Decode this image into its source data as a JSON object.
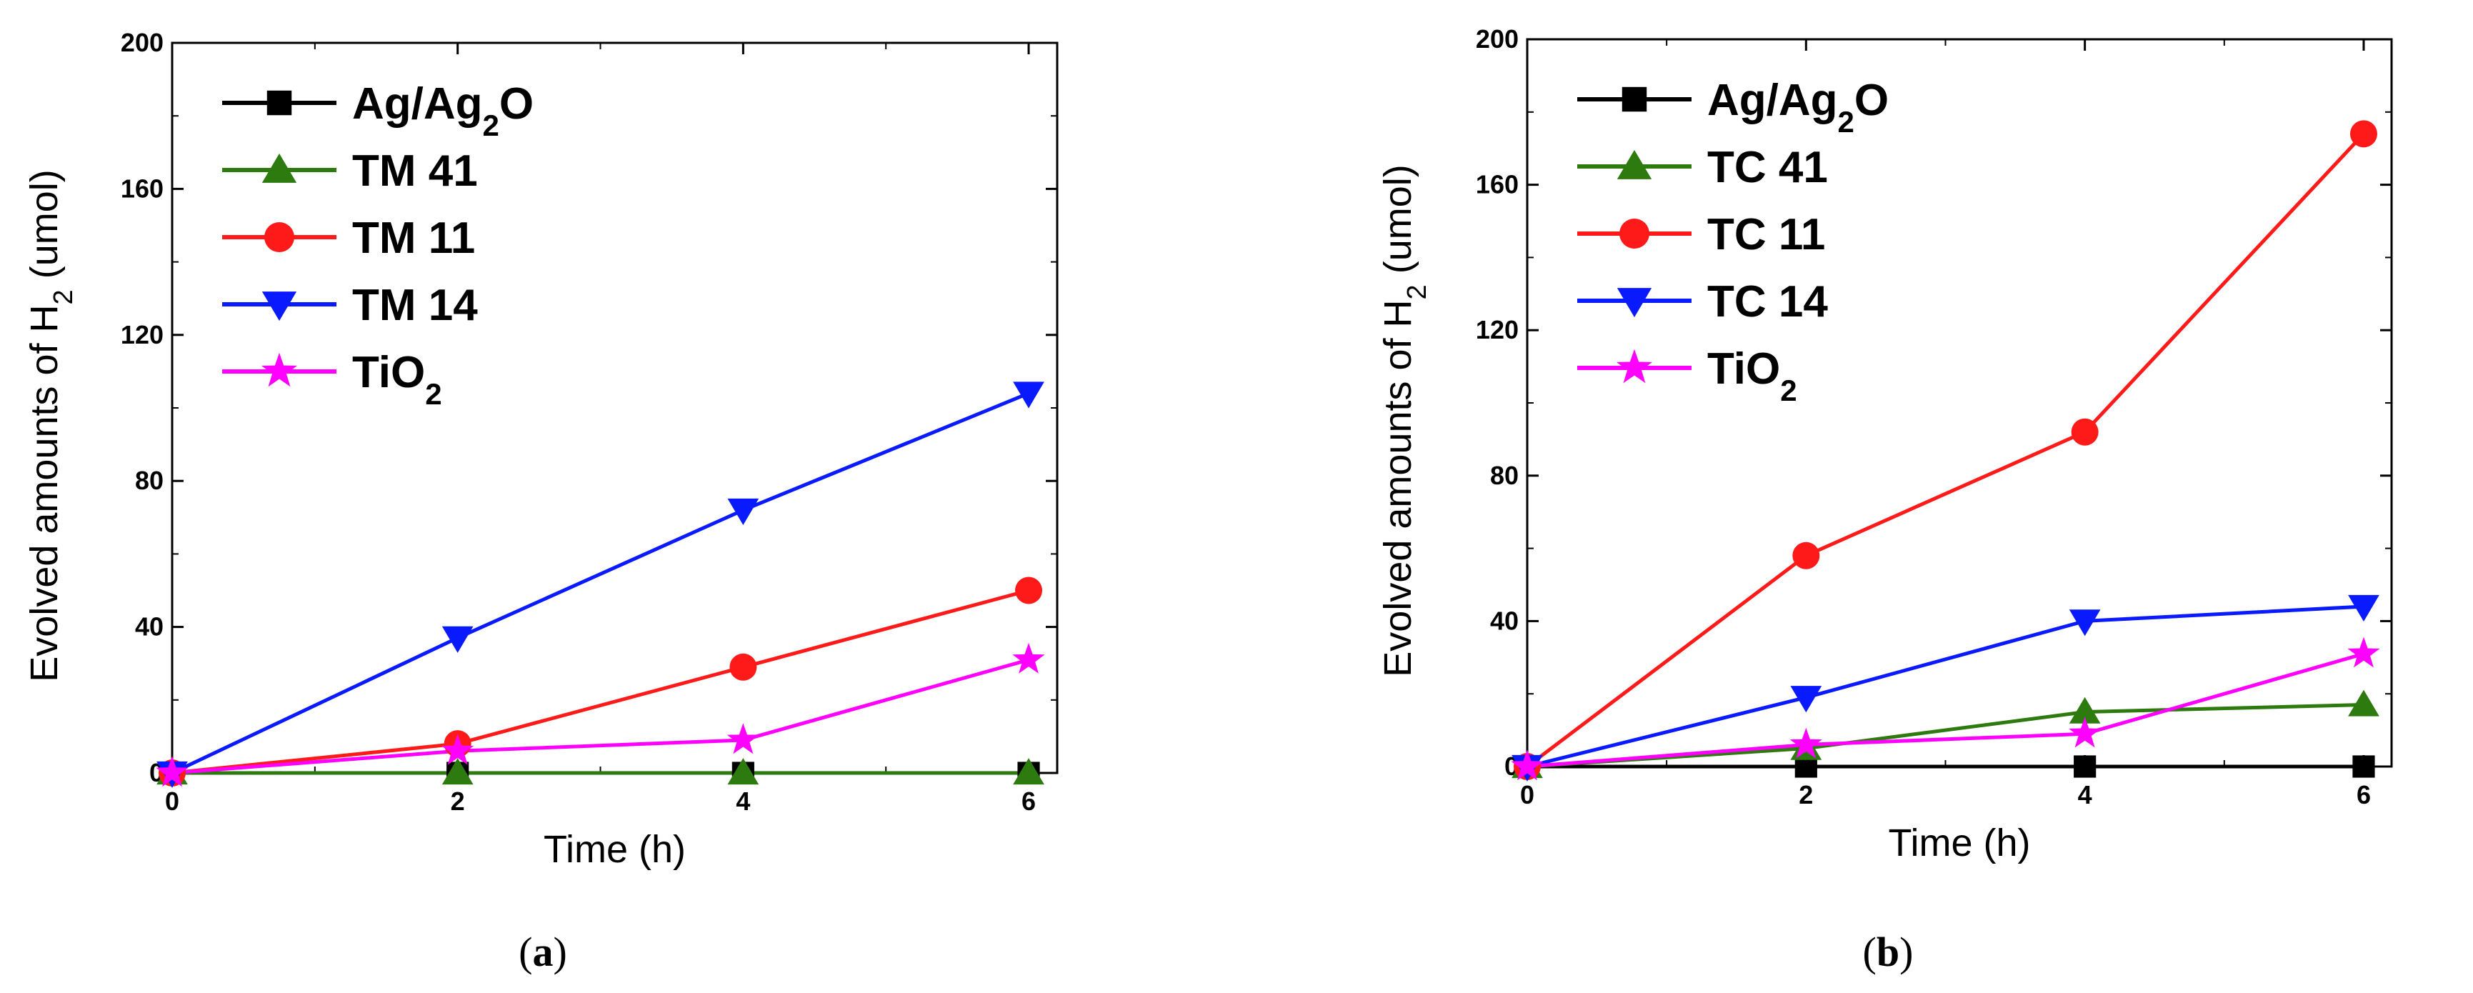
{
  "chart_data": [
    {
      "type": "line",
      "panel": "a",
      "caption": {
        "open": "(",
        "letter": "a",
        "close": ")"
      },
      "xlabel": "Time (h)",
      "ylabel": {
        "main": "Evolved amounts of H",
        "sub": "2",
        "unit": " (umol)"
      },
      "xlim": [
        0,
        6.2
      ],
      "ylim": [
        0,
        200
      ],
      "xticks": [
        0,
        2,
        4,
        6
      ],
      "yticks": [
        0,
        40,
        80,
        120,
        160,
        200
      ],
      "x": [
        0,
        2,
        4,
        6
      ],
      "legend_position": "top-left",
      "series": [
        {
          "name": "Ag/Ag",
          "name_sub": "2",
          "name_tail": "O",
          "marker": "square",
          "color": "#000000",
          "values": [
            0,
            0,
            0,
            0
          ]
        },
        {
          "name": "TM 41",
          "name_sub": "",
          "name_tail": "",
          "marker": "triangle-up",
          "color": "#2d7a0e",
          "values": [
            0,
            0,
            0,
            0
          ]
        },
        {
          "name": "TM 11",
          "name_sub": "",
          "name_tail": "",
          "marker": "circle",
          "color": "#ff1a1a",
          "values": [
            0,
            8,
            29,
            50
          ]
        },
        {
          "name": "TM 14",
          "name_sub": "",
          "name_tail": "",
          "marker": "triangle-down",
          "color": "#0a1aff",
          "values": [
            0,
            37,
            72,
            104
          ]
        },
        {
          "name": "TiO",
          "name_sub": "2",
          "name_tail": "",
          "marker": "star",
          "color": "#ff00ff",
          "values": [
            0,
            6,
            9,
            31
          ]
        }
      ]
    },
    {
      "type": "line",
      "panel": "b",
      "caption": {
        "open": "(",
        "letter": "b",
        "close": ")"
      },
      "xlabel": "Time (h)",
      "ylabel": {
        "main": "Evolved amounts of H",
        "sub": "2",
        "unit": " (umol)"
      },
      "xlim": [
        0,
        6.2
      ],
      "ylim": [
        0,
        200
      ],
      "xticks": [
        0,
        2,
        4,
        6
      ],
      "yticks": [
        0,
        40,
        80,
        120,
        160,
        200
      ],
      "x": [
        0,
        2,
        4,
        6
      ],
      "legend_position": "top-left",
      "series": [
        {
          "name": "Ag/Ag",
          "name_sub": "2",
          "name_tail": "O",
          "marker": "square",
          "color": "#000000",
          "values": [
            0,
            0,
            0,
            0
          ]
        },
        {
          "name": "TC 41",
          "name_sub": "",
          "name_tail": "",
          "marker": "triangle-up",
          "color": "#2d7a0e",
          "values": [
            0,
            5,
            15,
            17
          ]
        },
        {
          "name": "TC 11",
          "name_sub": "",
          "name_tail": "",
          "marker": "circle",
          "color": "#ff1a1a",
          "values": [
            0,
            58,
            92,
            174
          ]
        },
        {
          "name": "TC 14",
          "name_sub": "",
          "name_tail": "",
          "marker": "triangle-down",
          "color": "#0a1aff",
          "values": [
            0,
            19,
            40,
            44
          ]
        },
        {
          "name": "TiO",
          "name_sub": "2",
          "name_tail": "",
          "marker": "star",
          "color": "#ff00ff",
          "values": [
            0,
            6,
            9,
            31
          ]
        }
      ]
    }
  ]
}
